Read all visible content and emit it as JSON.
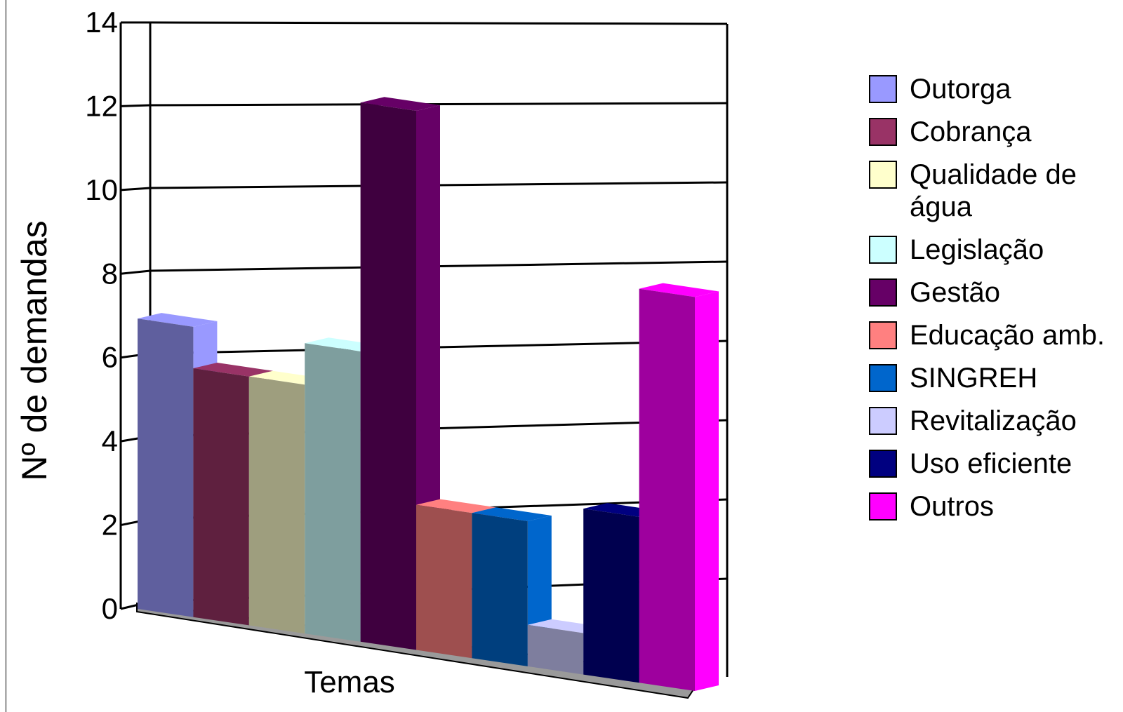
{
  "chart_data": {
    "type": "bar",
    "title": "",
    "xlabel": "Temas",
    "ylabel": "Nº de demandas",
    "ylim": [
      0,
      14
    ],
    "yticks": [
      "0",
      "2",
      "4",
      "6",
      "8",
      "10",
      "12",
      "14"
    ],
    "grid": true,
    "legend_position": "right",
    "categories": [
      "Temas"
    ],
    "series": [
      {
        "name": "Outorga",
        "values": [
          7
        ],
        "color": "#9999ff"
      },
      {
        "name": "Cobrança",
        "values": [
          6
        ],
        "color": "#993366"
      },
      {
        "name": "Qualidade de água",
        "values": [
          6
        ],
        "color": "#ffffcc"
      },
      {
        "name": "Legislação",
        "values": [
          7
        ],
        "color": "#ccffff"
      },
      {
        "name": "Gestão",
        "values": [
          13
        ],
        "color": "#660066"
      },
      {
        "name": "Educação amb.",
        "values": [
          3.5
        ],
        "color": "#ff8080"
      },
      {
        "name": "SINGREH",
        "values": [
          3.5
        ],
        "color": "#0066cc"
      },
      {
        "name": "Revitalização",
        "values": [
          1
        ],
        "color": "#ccccff"
      },
      {
        "name": "Uso eficiente",
        "values": [
          4
        ],
        "color": "#000080"
      },
      {
        "name": "Outros",
        "values": [
          9.5
        ],
        "color": "#ff00ff"
      }
    ]
  }
}
